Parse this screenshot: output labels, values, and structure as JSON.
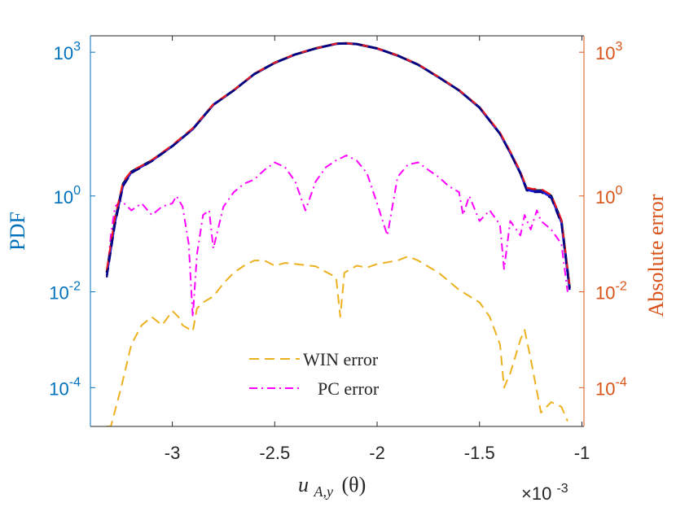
{
  "chart_data": {
    "type": "line",
    "x_axis": {
      "label_main": "u",
      "label_sub": "A,y",
      "label_arg": "(θ)",
      "range": [
        -3.4,
        -0.99
      ],
      "ticks": [
        -3,
        -2.5,
        -2,
        -1.5,
        -1
      ],
      "tick_labels": [
        "-3",
        "-2.5",
        "-2",
        "-1.5",
        "-1"
      ],
      "exponent_base": "×10",
      "exponent_power": "-3"
    },
    "y_left": {
      "label": "PDF",
      "scale": "log",
      "range": [
        1.55e-05,
        2200
      ],
      "ticks": [
        {
          "value": 0.0001,
          "base": "10",
          "exp": "-4"
        },
        {
          "value": 0.01,
          "base": "10",
          "exp": "-2"
        },
        {
          "value": 1,
          "base": "10",
          "exp": "0"
        },
        {
          "value": 1000,
          "base": "10",
          "exp": "3"
        }
      ],
      "color": "#0072BD"
    },
    "y_right": {
      "label": "Absolute error",
      "scale": "log",
      "range": [
        1.55e-05,
        2200
      ],
      "ticks": [
        {
          "value": 0.0001,
          "base": "10",
          "exp": "-4"
        },
        {
          "value": 0.01,
          "base": "10",
          "exp": "-2"
        },
        {
          "value": 1,
          "base": "10",
          "exp": "0"
        },
        {
          "value": 1000,
          "base": "10",
          "exp": "3"
        }
      ],
      "color": "#D95319"
    },
    "legend": {
      "placement": "lower-center",
      "entries": [
        {
          "series": "win_error",
          "label": "WIN error"
        },
        {
          "series": "pc_error",
          "label": "PC error"
        }
      ]
    },
    "series": [
      {
        "key": "reference",
        "color": "#000000",
        "style": "solid",
        "axis": "left",
        "x": [
          -3.32,
          -3.28,
          -3.24,
          -3.2,
          -3.1,
          -3.0,
          -2.9,
          -2.8,
          -2.7,
          -2.6,
          -2.5,
          -2.4,
          -2.3,
          -2.2,
          -2.15,
          -2.1,
          -2.0,
          -1.9,
          -1.8,
          -1.7,
          -1.6,
          -1.5,
          -1.4,
          -1.35,
          -1.3,
          -1.27,
          -1.24,
          -1.2,
          -1.15,
          -1.1,
          -1.06
        ],
        "y": [
          0.025,
          0.3,
          1.8,
          3.2,
          5.5,
          11,
          25,
          80,
          160,
          350,
          600,
          900,
          1200,
          1500,
          1530,
          1480,
          1200,
          850,
          550,
          300,
          160,
          70,
          20,
          8,
          3,
          1.4,
          1.3,
          1.3,
          1.0,
          0.3,
          0.012
        ]
      },
      {
        "key": "win",
        "color": "#1F1FE8",
        "style": "solid",
        "axis": "left",
        "x": [
          -3.32,
          -3.28,
          -3.24,
          -3.2,
          -3.1,
          -3.0,
          -2.9,
          -2.8,
          -2.7,
          -2.6,
          -2.5,
          -2.4,
          -2.3,
          -2.2,
          -2.15,
          -2.1,
          -2.0,
          -1.9,
          -1.8,
          -1.7,
          -1.6,
          -1.5,
          -1.4,
          -1.35,
          -1.3,
          -1.27,
          -1.24,
          -1.2,
          -1.15,
          -1.1,
          -1.06
        ],
        "y": [
          0.022,
          0.28,
          1.7,
          3.1,
          5.4,
          11,
          25,
          80,
          160,
          350,
          600,
          900,
          1200,
          1500,
          1530,
          1480,
          1200,
          850,
          550,
          300,
          160,
          70,
          20,
          8,
          3,
          1.35,
          1.25,
          1.25,
          0.95,
          0.28,
          0.011
        ]
      },
      {
        "key": "pc",
        "color": "#E8181E",
        "style": "dashed",
        "axis": "left",
        "x": [
          -3.32,
          -3.28,
          -3.24,
          -3.2,
          -3.1,
          -3.0,
          -2.9,
          -2.8,
          -2.7,
          -2.6,
          -2.5,
          -2.4,
          -2.3,
          -2.2,
          -2.15,
          -2.1,
          -2.0,
          -1.9,
          -1.8,
          -1.7,
          -1.6,
          -1.5,
          -1.4,
          -1.35,
          -1.3,
          -1.27,
          -1.24,
          -1.2,
          -1.15,
          -1.1,
          -1.06
        ],
        "y": [
          0.028,
          0.35,
          2.0,
          3.3,
          5.6,
          11.5,
          26,
          82,
          162,
          355,
          605,
          905,
          1205,
          1505,
          1535,
          1485,
          1205,
          855,
          555,
          305,
          162,
          72,
          21,
          8.5,
          3.2,
          1.5,
          1.4,
          1.4,
          1.05,
          0.32,
          0.013
        ]
      },
      {
        "key": "mid",
        "color": "#000080",
        "style": "dashed",
        "axis": "left",
        "x": [
          -3.32,
          -3.28,
          -3.24,
          -3.2,
          -3.1,
          -3.0,
          -2.9,
          -2.8,
          -2.7,
          -2.6,
          -2.5,
          -2.4,
          -2.3,
          -2.2,
          -2.15,
          -2.1,
          -2.0,
          -1.9,
          -1.8,
          -1.7,
          -1.6,
          -1.5,
          -1.4,
          -1.35,
          -1.3,
          -1.27,
          -1.24,
          -1.2,
          -1.15,
          -1.1,
          -1.06
        ],
        "y": [
          0.02,
          0.25,
          1.6,
          3.0,
          5.3,
          10.8,
          24.5,
          79,
          159,
          348,
          598,
          898,
          1198,
          1498,
          1528,
          1478,
          1198,
          848,
          548,
          298,
          159,
          69,
          19.5,
          7.8,
          2.9,
          1.3,
          1.2,
          1.2,
          0.9,
          0.26,
          0.011
        ]
      },
      {
        "key": "win_error",
        "color": "#EDB120",
        "style": "dashed",
        "axis": "right",
        "x": [
          -3.32,
          -3.3,
          -3.25,
          -3.2,
          -3.15,
          -3.1,
          -3.05,
          -3.0,
          -2.97,
          -2.95,
          -2.9,
          -2.88,
          -2.85,
          -2.8,
          -2.75,
          -2.7,
          -2.65,
          -2.6,
          -2.55,
          -2.5,
          -2.45,
          -2.4,
          -2.3,
          -2.2,
          -2.18,
          -2.16,
          -2.1,
          -2.05,
          -2.0,
          -1.9,
          -1.85,
          -1.8,
          -1.7,
          -1.6,
          -1.5,
          -1.45,
          -1.4,
          -1.38,
          -1.35,
          -1.3,
          -1.28,
          -1.25,
          -1.2,
          -1.15,
          -1.1,
          -1.07
        ],
        "y": [
          1.55e-05,
          1.55e-05,
          0.0001,
          0.0008,
          0.002,
          0.003,
          0.002,
          0.004,
          0.003,
          0.002,
          0.0015,
          0.0045,
          0.006,
          0.008,
          0.015,
          0.025,
          0.035,
          0.045,
          0.045,
          0.035,
          0.04,
          0.038,
          0.034,
          0.02,
          0.003,
          0.025,
          0.035,
          0.032,
          0.038,
          0.045,
          0.055,
          0.045,
          0.025,
          0.011,
          0.006,
          0.003,
          0.0008,
          0.0001,
          0.0002,
          0.001,
          0.0016,
          0.0004,
          3e-05,
          5e-05,
          4e-05,
          2e-05
        ]
      },
      {
        "key": "pc_error",
        "color": "#FF00FF",
        "style": "dashdot",
        "axis": "right",
        "x": [
          -3.32,
          -3.3,
          -3.28,
          -3.25,
          -3.2,
          -3.15,
          -3.1,
          -3.05,
          -3.0,
          -2.98,
          -2.95,
          -2.92,
          -2.9,
          -2.88,
          -2.85,
          -2.82,
          -2.8,
          -2.75,
          -2.7,
          -2.65,
          -2.6,
          -2.55,
          -2.5,
          -2.45,
          -2.4,
          -2.35,
          -2.3,
          -2.25,
          -2.2,
          -2.15,
          -2.1,
          -2.05,
          -2.0,
          -1.95,
          -1.9,
          -1.85,
          -1.8,
          -1.75,
          -1.7,
          -1.65,
          -1.6,
          -1.58,
          -1.55,
          -1.5,
          -1.45,
          -1.4,
          -1.38,
          -1.35,
          -1.3,
          -1.28,
          -1.25,
          -1.22,
          -1.2,
          -1.15,
          -1.1,
          -1.07
        ],
        "y": [
          0.02,
          0.15,
          0.6,
          0.8,
          0.5,
          0.7,
          0.4,
          0.6,
          0.7,
          1.0,
          0.6,
          0.1,
          0.003,
          0.06,
          0.4,
          0.5,
          0.08,
          0.6,
          1.2,
          1.8,
          2.2,
          3.5,
          5.0,
          4.0,
          2.0,
          0.5,
          2.0,
          4.0,
          5.5,
          7.0,
          5.5,
          3.0,
          0.7,
          0.15,
          2.5,
          4.5,
          5.0,
          3.5,
          2.5,
          1.6,
          1.2,
          0.4,
          1.0,
          0.3,
          0.5,
          0.25,
          0.03,
          0.3,
          0.15,
          0.4,
          0.2,
          0.5,
          0.3,
          0.2,
          0.1,
          0.01
        ]
      }
    ]
  }
}
